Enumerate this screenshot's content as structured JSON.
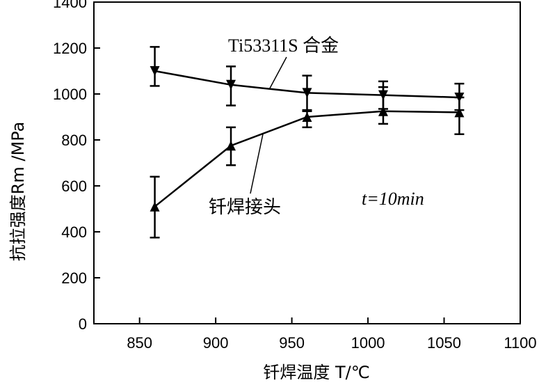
{
  "chart_data": {
    "type": "line",
    "title": "",
    "xlabel": "钎焊温度 T/℃",
    "ylabel": "抗拉强度Rm /MPa",
    "xlim": [
      820,
      1100
    ],
    "ylim": [
      0,
      1400
    ],
    "xticks": [
      850,
      900,
      950,
      1000,
      1050,
      1100
    ],
    "yticks": [
      0,
      200,
      400,
      600,
      800,
      1000,
      1200,
      1400
    ],
    "grid": false,
    "series": [
      {
        "name": "Ti53311S 合金",
        "marker": "triangle-down",
        "x": [
          860,
          910,
          960,
          1010,
          1060
        ],
        "y": [
          1100,
          1040,
          1005,
          995,
          985
        ],
        "err_low": [
          1035,
          950,
          930,
          935,
          930
        ],
        "err_high": [
          1205,
          1120,
          1080,
          1055,
          1045
        ]
      },
      {
        "name": "钎焊接头",
        "marker": "triangle-up",
        "x": [
          860,
          910,
          960,
          1010,
          1060
        ],
        "y": [
          510,
          775,
          900,
          925,
          920
        ],
        "err_low": [
          375,
          690,
          855,
          870,
          825
        ],
        "err_high": [
          640,
          855,
          925,
          1030,
          985
        ]
      }
    ],
    "annotations": [
      {
        "text": "t=10min"
      }
    ]
  }
}
